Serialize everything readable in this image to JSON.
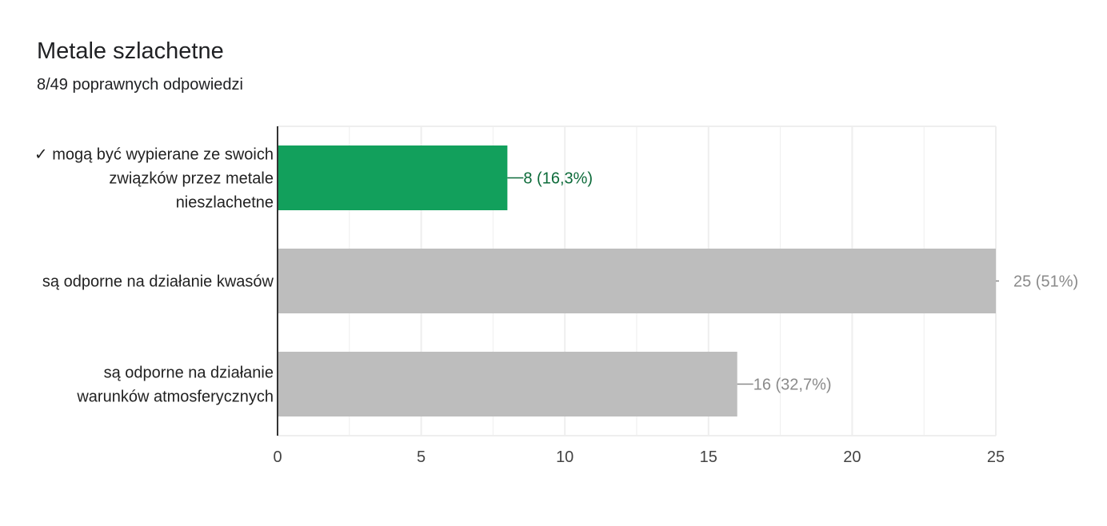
{
  "header": {
    "title": "Metale szlachetne",
    "subtitle": "8/49 poprawnych odpowiedzi"
  },
  "chart_data": {
    "type": "bar",
    "orientation": "horizontal",
    "title": "Metale szlachetne",
    "subtitle": "8/49 poprawnych odpowiedzi",
    "categories": [
      [
        "✓ mogą być wypierane ze swoich",
        "związków przez metale",
        "nieszlachetne"
      ],
      [
        "są odporne na działanie kwasów"
      ],
      [
        "są odporne na działanie",
        "warunków atmosferycznych"
      ]
    ],
    "values": [
      8,
      25,
      16
    ],
    "data_labels": [
      "8 (16,3%)",
      "25 (51%)",
      "16 (32,7%)"
    ],
    "correct": [
      true,
      false,
      false
    ],
    "xlim": [
      0,
      25
    ],
    "xticks": [
      0,
      5,
      10,
      15,
      20,
      25
    ],
    "grid": true,
    "colors": {
      "correct_bar": "#12a05c",
      "correct_label": "#0d6b3a",
      "other_bar": "#bdbdbd",
      "other_label": "#8a8a8a",
      "grid": "#eeeeee",
      "axis": "#333333"
    }
  }
}
